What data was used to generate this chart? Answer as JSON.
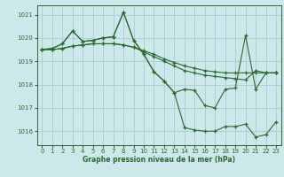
{
  "xlabel": "Graphe pression niveau de la mer (hPa)",
  "background_color": "#cce8ea",
  "grid_color": "#aed0d2",
  "line_color": "#2d6a2d",
  "xlim": [
    -0.5,
    23.5
  ],
  "ylim": [
    1015.4,
    1021.4
  ],
  "yticks": [
    1016,
    1017,
    1018,
    1019,
    1020,
    1021
  ],
  "xticks": [
    0,
    1,
    2,
    3,
    4,
    5,
    6,
    7,
    8,
    9,
    10,
    11,
    12,
    13,
    14,
    15,
    16,
    17,
    18,
    19,
    20,
    21,
    22,
    23
  ],
  "series": [
    [
      1019.5,
      1019.5,
      1019.55,
      1019.65,
      1019.7,
      1019.75,
      1019.75,
      1019.75,
      1019.7,
      1019.6,
      1019.45,
      1019.3,
      1019.1,
      1018.95,
      1018.8,
      1018.7,
      1018.6,
      1018.55,
      1018.5,
      1018.5,
      1018.5,
      1018.5,
      1018.5,
      1018.5
    ],
    [
      1019.5,
      1019.5,
      1019.55,
      1019.65,
      1019.7,
      1019.75,
      1019.75,
      1019.75,
      1019.7,
      1019.6,
      1019.4,
      1019.2,
      1019.0,
      1018.8,
      1018.6,
      1018.5,
      1018.4,
      1018.35,
      1018.3,
      1018.25,
      1018.2,
      1018.6,
      1018.5,
      1018.5
    ],
    [
      1019.5,
      1019.55,
      1019.75,
      1020.3,
      1019.85,
      1019.9,
      1020.0,
      1020.05,
      1021.1,
      1019.9,
      1019.3,
      1018.55,
      1018.15,
      1017.65,
      1016.15,
      1016.05,
      1016.0,
      1016.0,
      1016.2,
      1016.2,
      1016.3,
      1015.75,
      1015.85,
      1016.4
    ],
    [
      1019.5,
      1019.55,
      1019.75,
      1020.3,
      1019.85,
      1019.9,
      1020.0,
      1020.05,
      1021.1,
      1019.9,
      1019.3,
      1018.55,
      1018.15,
      1017.65,
      1017.8,
      1017.75,
      1017.1,
      1017.0,
      1017.8,
      1017.85,
      1020.1,
      1017.8,
      1018.5,
      1018.5
    ]
  ]
}
